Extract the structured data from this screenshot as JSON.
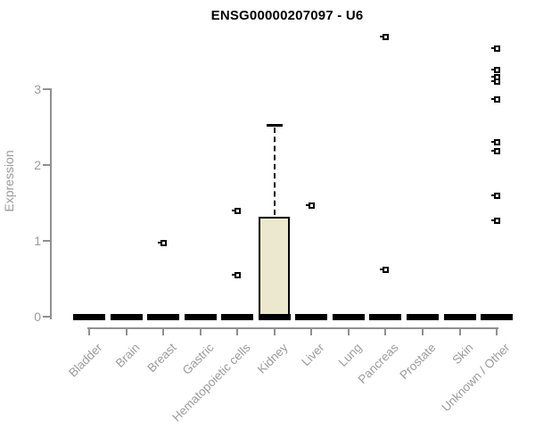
{
  "colors": {
    "box_fill": "#ece8cd",
    "axis_gray": "#909090",
    "text_gray": "#9b9b9b",
    "line_black": "#000000"
  },
  "chart_data": {
    "type": "boxplot",
    "title": "ENSG00000207097 - U6",
    "xlabel": "",
    "ylabel": "Expression",
    "ylim": [
      0,
      3.8
    ],
    "yticks": [
      0,
      1,
      2,
      3
    ],
    "grid": false,
    "legend": null,
    "categories": [
      "Bladder",
      "Brain",
      "Breast",
      "Gastric",
      "Hematopoietic cells",
      "Kidney",
      "Liver",
      "Lung",
      "Pancreas",
      "Prostate",
      "Skin",
      "Unknown / Other"
    ],
    "boxes": [
      {
        "category": "Bladder",
        "low": 0,
        "q1": 0,
        "median": 0,
        "q3": 0,
        "high": 0,
        "outliers": []
      },
      {
        "category": "Brain",
        "low": 0,
        "q1": 0,
        "median": 0,
        "q3": 0,
        "high": 0,
        "outliers": []
      },
      {
        "category": "Breast",
        "low": 0,
        "q1": 0,
        "median": 0,
        "q3": 0,
        "high": 0,
        "outliers": [
          0.97
        ]
      },
      {
        "category": "Gastric",
        "low": 0,
        "q1": 0,
        "median": 0,
        "q3": 0,
        "high": 0,
        "outliers": []
      },
      {
        "category": "Hematopoietic cells",
        "low": 0,
        "q1": 0,
        "median": 0,
        "q3": 0,
        "high": 0,
        "outliers": [
          1.39,
          0.55
        ]
      },
      {
        "category": "Kidney",
        "low": 0,
        "q1": 0,
        "median": 0,
        "q3": 1.32,
        "high": 2.53,
        "outliers": []
      },
      {
        "category": "Liver",
        "low": 0,
        "q1": 0,
        "median": 0,
        "q3": 0,
        "high": 0,
        "outliers": [
          1.46
        ]
      },
      {
        "category": "Lung",
        "low": 0,
        "q1": 0,
        "median": 0,
        "q3": 0,
        "high": 0,
        "outliers": []
      },
      {
        "category": "Pancreas",
        "low": 0,
        "q1": 0,
        "median": 0,
        "q3": 0,
        "high": 0,
        "outliers": [
          3.69,
          0.62
        ]
      },
      {
        "category": "Prostate",
        "low": 0,
        "q1": 0,
        "median": 0,
        "q3": 0,
        "high": 0,
        "outliers": []
      },
      {
        "category": "Skin",
        "low": 0,
        "q1": 0,
        "median": 0,
        "q3": 0,
        "high": 0,
        "outliers": []
      },
      {
        "category": "Unknown / Other",
        "low": 0,
        "q1": 0,
        "median": 0,
        "q3": 0,
        "high": 0,
        "outliers": [
          3.53,
          3.25,
          3.16,
          3.1,
          2.86,
          2.3,
          2.18,
          1.6,
          1.26
        ]
      }
    ]
  }
}
